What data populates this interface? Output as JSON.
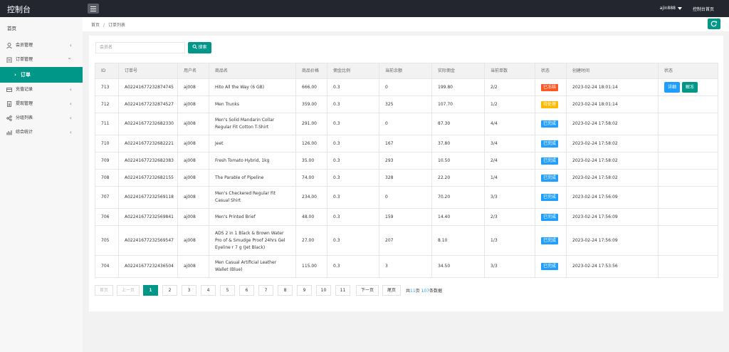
{
  "app": {
    "title": "控制台",
    "user": "ajin888",
    "home_link": "控制台首页"
  },
  "sidebar": {
    "home": "首页",
    "groups": [
      {
        "label": "会员管理",
        "icon": "user-icon"
      },
      {
        "label": "订单管理",
        "icon": "clipboard-icon",
        "expanded": true
      }
    ],
    "active_item": "订单",
    "items_after": [
      {
        "label": "充值记录",
        "icon": "card-icon"
      },
      {
        "label": "提现管理",
        "icon": "withdraw-icon"
      },
      {
        "label": "分组列表",
        "icon": "share-icon"
      },
      {
        "label": "综合统计",
        "icon": "chart-icon"
      }
    ]
  },
  "breadcrumb": {
    "home": "首页",
    "separator": "/",
    "current": "订单列表"
  },
  "search": {
    "placeholder": "会员名",
    "button_label": "搜索"
  },
  "table": {
    "headers": [
      "ID",
      "订单号",
      "用户名",
      "商品名",
      "商品价格",
      "佣金比例",
      "当前余额",
      "实际佣金",
      "当前单数",
      "状态",
      "创建时间",
      "状态"
    ],
    "rows": [
      {
        "id": "713",
        "order_no": "A02241677232874745",
        "user": "aj008",
        "product": "Hito All the Way (6 GB)",
        "price": "666.00",
        "ratio": "0.3",
        "balance": "0",
        "commission": "199.80",
        "count": "2/2",
        "status": "已冻结",
        "status_color": "#ff5722",
        "created": "2023-02-24 18:01:14",
        "actions": [
          "详细",
          "解冻"
        ]
      },
      {
        "id": "712",
        "order_no": "A02241677232874527",
        "user": "aj008",
        "product": "Men Trunks",
        "price": "359.00",
        "ratio": "0.3",
        "balance": "325",
        "commission": "107.70",
        "count": "1/2",
        "status": "待处理",
        "status_color": "#ffb800",
        "created": "2023-02-24 18:01:14"
      },
      {
        "id": "711",
        "order_no": "A02241677232682330",
        "user": "aj008",
        "product": "Men's Solid Mandarin Collar Regular Fit Cotton T-Shirt",
        "price": "291.00",
        "ratio": "0.3",
        "balance": "0",
        "commission": "87.30",
        "count": "4/4",
        "status": "已完成",
        "status_color": "#1e9fff",
        "created": "2023-02-24 17:58:02"
      },
      {
        "id": "710",
        "order_no": "A02241677232682221",
        "user": "aj008",
        "product": "Jeet",
        "price": "126.00",
        "ratio": "0.3",
        "balance": "167",
        "commission": "37.80",
        "count": "3/4",
        "status": "已完成",
        "status_color": "#1e9fff",
        "created": "2023-02-24 17:58:02"
      },
      {
        "id": "709",
        "order_no": "A02241677232682383",
        "user": "aj008",
        "product": "Fresh Tomato Hybrid, 1kg",
        "price": "35.00",
        "ratio": "0.3",
        "balance": "293",
        "commission": "10.50",
        "count": "2/4",
        "status": "已完成",
        "status_color": "#1e9fff",
        "created": "2023-02-24 17:58:02"
      },
      {
        "id": "708",
        "order_no": "A02241677232682155",
        "user": "aj008",
        "product": "The Parable of Pipeline",
        "price": "74.00",
        "ratio": "0.3",
        "balance": "328",
        "commission": "22.20",
        "count": "1/4",
        "status": "已完成",
        "status_color": "#1e9fff",
        "created": "2023-02-24 17:58:02"
      },
      {
        "id": "707",
        "order_no": "A02241677232569118",
        "user": "aj008",
        "product": "Men's Checkered Regular Fit Casual Shirt",
        "price": "234.00",
        "ratio": "0.3",
        "balance": "0",
        "commission": "70.20",
        "count": "3/3",
        "status": "已完成",
        "status_color": "#1e9fff",
        "created": "2023-02-24 17:56:09"
      },
      {
        "id": "706",
        "order_no": "A02241677232569841",
        "user": "aj008",
        "product": "Men's Printed Brief",
        "price": "48.00",
        "ratio": "0.3",
        "balance": "159",
        "commission": "14.40",
        "count": "2/3",
        "status": "已完成",
        "status_color": "#1e9fff",
        "created": "2023-02-24 17:56:09"
      },
      {
        "id": "705",
        "order_no": "A02241677232569547",
        "user": "aj008",
        "product": "ADS 2 in 1 Black & Brown Water Pro of & Smudge Proof 24hrs Gel Eyeline r 7 g (Jet Black)",
        "price": "27.00",
        "ratio": "0.3",
        "balance": "207",
        "commission": "8.10",
        "count": "1/3",
        "status": "已完成",
        "status_color": "#1e9fff",
        "created": "2023-02-24 17:56:09"
      },
      {
        "id": "704",
        "order_no": "A02241677232436504",
        "user": "aj008",
        "product": "Men Casual Artificial Leather Wallet (Blue)",
        "price": "115.00",
        "ratio": "0.3",
        "balance": "3",
        "commission": "34.50",
        "count": "3/3",
        "status": "已完成",
        "status_color": "#1e9fff",
        "created": "2023-02-24 17:53:56"
      }
    ]
  },
  "pagination": {
    "first": "首页",
    "prev": "上一页",
    "pages": [
      "1",
      "2",
      "3",
      "4",
      "5",
      "6",
      "7",
      "8",
      "9",
      "10",
      "11"
    ],
    "current": "1",
    "next": "下一页",
    "last": "尾页",
    "total_prefix": "共",
    "total_pages": "11",
    "total_mid": "页 ",
    "total_count": "107",
    "total_suffix": "条数据"
  },
  "colors": {
    "accent": "#009688",
    "topbar": "#23262e",
    "danger": "#ff5722",
    "warn": "#ffb800",
    "info": "#1e9fff"
  }
}
